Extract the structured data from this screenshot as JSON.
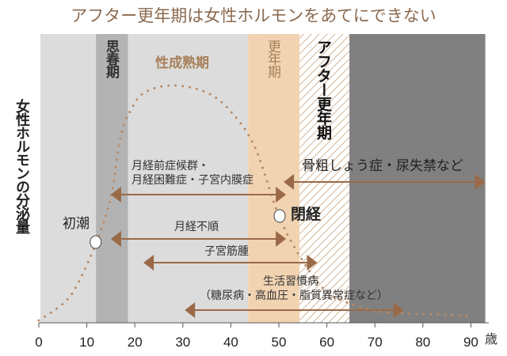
{
  "title": "アフター更年期は女性ホルモンをあてにできない",
  "chart_data": {
    "type": "line",
    "title": "アフター更年期は女性ホルモンをあてにできない",
    "ylabel": "女性ホルモンの分泌量",
    "xlabel": "",
    "x_unit": "歳",
    "xlim": [
      0,
      93
    ],
    "xticks": [
      0,
      10,
      20,
      30,
      40,
      50,
      60,
      70,
      80,
      90
    ],
    "tick_labels": [
      "0",
      "10",
      "20",
      "30",
      "40",
      "50",
      "60",
      "70",
      "80",
      "90"
    ],
    "grid": false,
    "colors": {
      "curve": "#b98a66",
      "arrow": "#9a6a48",
      "title": "#8b6a4f",
      "band_label": "#a8805a"
    },
    "bands": [
      {
        "label": "",
        "start": 0,
        "end": 11.9,
        "color": "#dcdcdc"
      },
      {
        "label": "思春期",
        "start": 11.9,
        "end": 18.6,
        "color": "#b3b3b3"
      },
      {
        "label": "性成熟期",
        "start": 18.6,
        "end": 43.6,
        "color": "#dcdcdc"
      },
      {
        "label": "更年期",
        "start": 43.6,
        "end": 54.3,
        "color": "#f1d3b2"
      },
      {
        "label": "アフター更年期",
        "start": 54.3,
        "end": 64.7,
        "color": "hatched"
      },
      {
        "label": "",
        "start": 64.7,
        "end": 93,
        "color": "#808080"
      }
    ],
    "curve": {
      "x": [
        0,
        5,
        8,
        12,
        15,
        17,
        19,
        22,
        28,
        35,
        40,
        45,
        50,
        55,
        60,
        65,
        70,
        76,
        90
      ],
      "y": [
        1,
        8,
        16,
        34,
        53,
        78,
        89,
        97,
        100,
        97,
        89,
        74,
        45,
        26,
        13,
        8,
        5,
        4,
        3
      ]
    },
    "events": [
      {
        "label": "初潮",
        "age": 12,
        "level": 34
      },
      {
        "label": "閉経",
        "age": 50,
        "level": 45
      }
    ],
    "ranges": [
      {
        "lines": [
          "月経前症候群・",
          "月経困難症・子宮内膜症"
        ],
        "start": 15,
        "end": 51.5
      },
      {
        "lines": [
          "骨粗しょう症・尿失禁など"
        ],
        "start": 51,
        "end": 93
      },
      {
        "lines": [
          "月経不順"
        ],
        "start": 15,
        "end": 51.5
      },
      {
        "lines": [
          "子宮筋腫"
        ],
        "start": 21.8,
        "end": 58
      },
      {
        "lines": [
          "生活習慣病",
          "（糖尿病・高血圧・脂質異常症など）"
        ],
        "start": 30.4,
        "end": 76
      }
    ]
  }
}
